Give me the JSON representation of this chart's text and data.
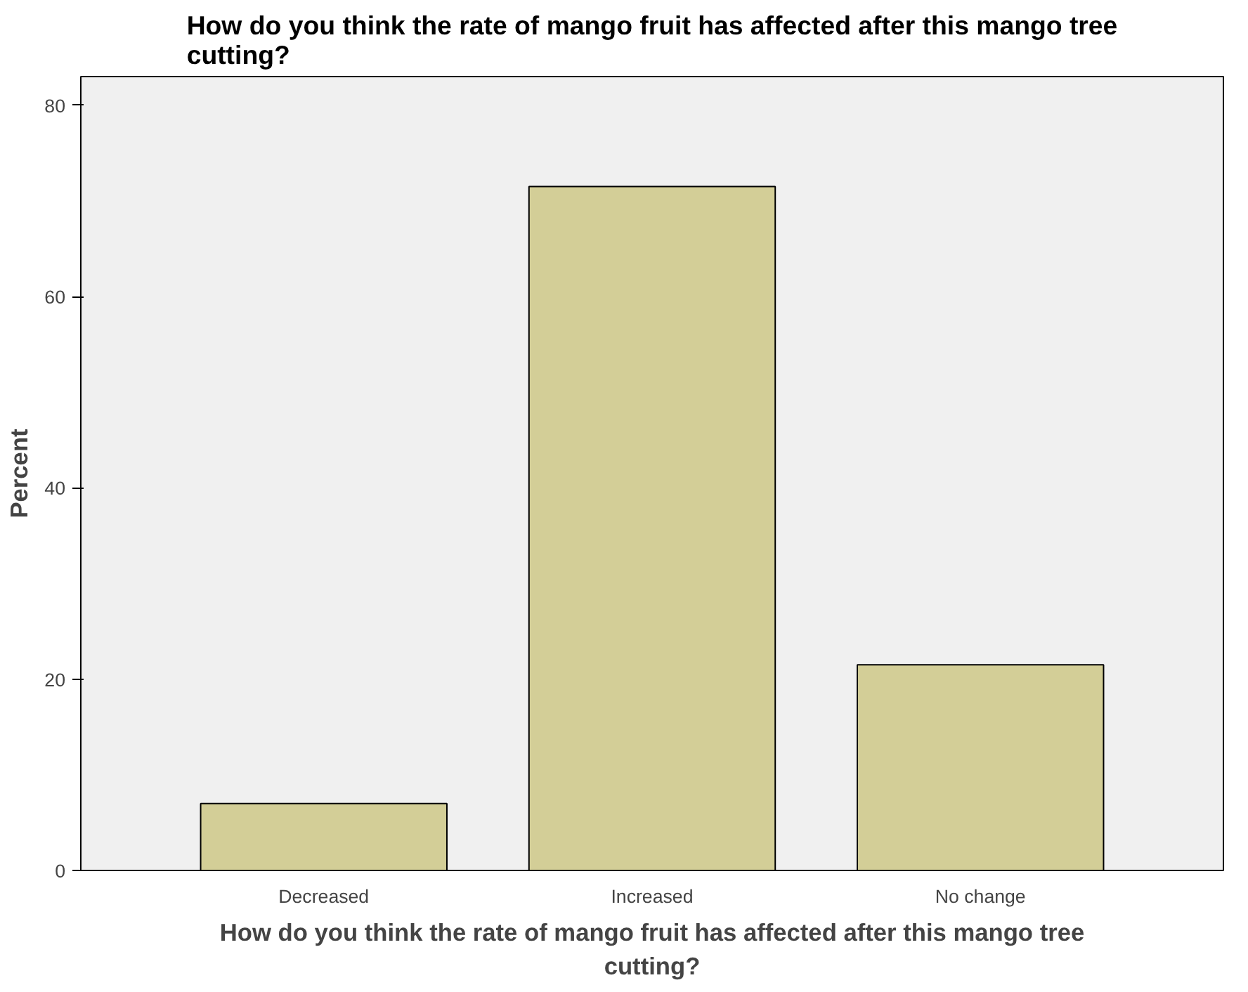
{
  "chart_data": {
    "type": "bar",
    "title": "How do you think the rate of mango fruit has affected after this mango tree cutting?",
    "xlabel": "How do you think the rate of mango fruit has affected after this mango tree cutting?",
    "ylabel": "Percent",
    "categories": [
      "Decreased",
      "Increased",
      "No change"
    ],
    "values": [
      7.0,
      71.5,
      21.5
    ],
    "color": "#d3ce97",
    "ylim": [
      0,
      83
    ],
    "yticks": [
      0,
      20,
      40,
      60,
      80
    ],
    "grid": false
  }
}
